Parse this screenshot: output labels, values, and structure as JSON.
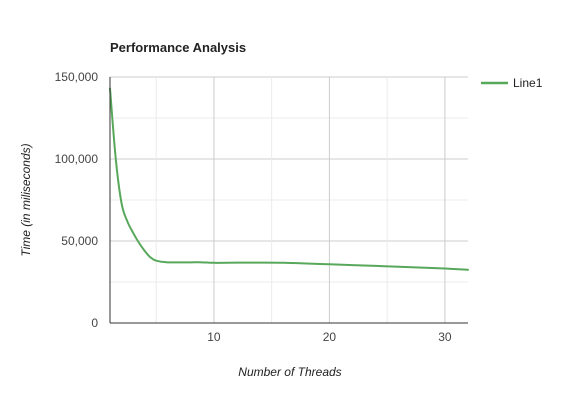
{
  "chart_data": {
    "type": "line",
    "title": "Performance Analysis",
    "xlabel": "Number of Threads",
    "ylabel": "Time (in miliseconds)",
    "xlim": [
      1,
      32
    ],
    "ylim": [
      0,
      150000
    ],
    "xticks": [
      10,
      20,
      30
    ],
    "xtick_labels": [
      "10",
      "20",
      "30"
    ],
    "yticks": [
      0,
      50000,
      100000,
      150000
    ],
    "ytick_labels": [
      "0",
      "50,000",
      "100,000",
      "150,000"
    ],
    "grid": true,
    "legend_position": "top-right",
    "series": [
      {
        "name": "Line1",
        "color": "#57a85a",
        "x": [
          1,
          1.5,
          2,
          2.5,
          3,
          3.5,
          4,
          4.5,
          5,
          6,
          7,
          8,
          9,
          10,
          12,
          14,
          16,
          18,
          20,
          22,
          24,
          26,
          28,
          30,
          32
        ],
        "y": [
          143000,
          100000,
          73000,
          62000,
          55000,
          49000,
          44000,
          40000,
          38000,
          37000,
          37000,
          37000,
          37000,
          36700,
          36800,
          36800,
          36700,
          36300,
          35800,
          35300,
          34800,
          34300,
          33800,
          33200,
          32500
        ]
      }
    ]
  }
}
